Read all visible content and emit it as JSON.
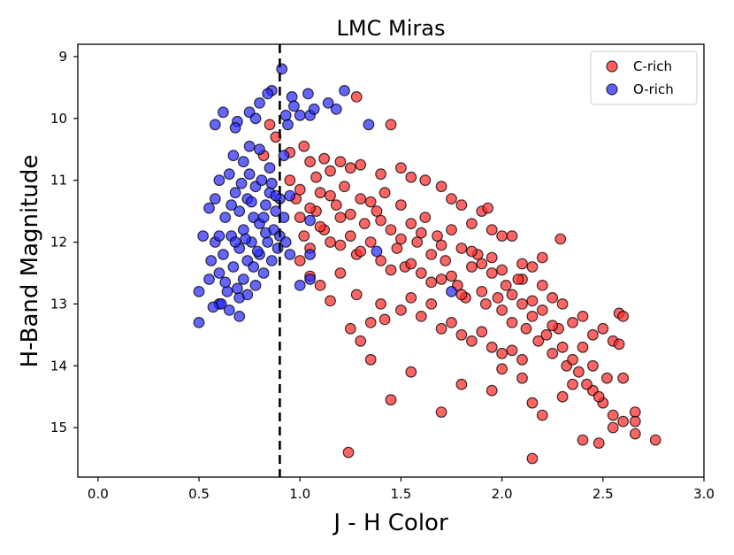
{
  "chart_data": {
    "type": "scatter",
    "title": "LMC Miras",
    "xlabel": "J - H Color",
    "ylabel": "H-Band Magnitude",
    "xlim": [
      -0.1,
      3.0
    ],
    "ylim": [
      15.8,
      8.8
    ],
    "y_inverted": true,
    "xticks": [
      0.0,
      0.5,
      1.0,
      1.5,
      2.0,
      2.5,
      3.0
    ],
    "xtick_labels": [
      "0.0",
      "0.5",
      "1.0",
      "1.5",
      "2.0",
      "2.5",
      "3.0"
    ],
    "yticks": [
      9,
      10,
      11,
      12,
      13,
      14,
      15
    ],
    "ytick_labels": [
      "9",
      "10",
      "11",
      "12",
      "13",
      "14",
      "15"
    ],
    "grid": false,
    "legend_position": "top-right",
    "divider": {
      "x": 0.9,
      "style": "dashed",
      "color": "#000000"
    },
    "series": [
      {
        "name": "C-rich",
        "color": "#ff2a2a",
        "points": [
          [
            0.85,
            10.1
          ],
          [
            0.88,
            10.3
          ],
          [
            0.82,
            10.6
          ],
          [
            0.95,
            10.55
          ],
          [
            1.02,
            10.45
          ],
          [
            1.05,
            10.7
          ],
          [
            1.08,
            10.95
          ],
          [
            1.12,
            10.65
          ],
          [
            1.15,
            10.85
          ],
          [
            1.2,
            10.7
          ],
          [
            1.25,
            10.8
          ],
          [
            1.3,
            10.75
          ],
          [
            1.28,
            9.65
          ],
          [
            1.45,
            10.1
          ],
          [
            1.4,
            10.9
          ],
          [
            1.5,
            10.8
          ],
          [
            1.55,
            10.95
          ],
          [
            1.62,
            11.0
          ],
          [
            1.7,
            11.1
          ],
          [
            1.75,
            11.3
          ],
          [
            1.8,
            11.4
          ],
          [
            1.85,
            11.7
          ],
          [
            1.9,
            11.5
          ],
          [
            1.93,
            11.45
          ],
          [
            1.95,
            11.8
          ],
          [
            2.0,
            11.9
          ],
          [
            2.05,
            11.9
          ],
          [
            2.15,
            12.4
          ],
          [
            2.29,
            11.95
          ],
          [
            2.1,
            12.6
          ],
          [
            2.2,
            12.7
          ],
          [
            2.25,
            12.9
          ],
          [
            2.3,
            13.0
          ],
          [
            2.35,
            13.3
          ],
          [
            2.4,
            13.2
          ],
          [
            2.45,
            13.5
          ],
          [
            2.5,
            13.4
          ],
          [
            2.55,
            13.6
          ],
          [
            2.58,
            13.15
          ],
          [
            2.6,
            13.2
          ],
          [
            2.58,
            13.65
          ],
          [
            2.6,
            14.2
          ],
          [
            2.66,
            14.75
          ],
          [
            2.66,
            14.9
          ],
          [
            2.66,
            15.1
          ],
          [
            2.76,
            15.2
          ],
          [
            2.6,
            14.9
          ],
          [
            2.55,
            15.0
          ],
          [
            2.48,
            15.25
          ],
          [
            2.4,
            15.2
          ],
          [
            2.5,
            14.6
          ],
          [
            2.45,
            14.4
          ],
          [
            2.35,
            14.3
          ],
          [
            2.3,
            14.5
          ],
          [
            2.2,
            14.8
          ],
          [
            2.15,
            14.6
          ],
          [
            2.1,
            14.2
          ],
          [
            2.0,
            14.05
          ],
          [
            1.95,
            14.4
          ],
          [
            1.8,
            14.3
          ],
          [
            1.7,
            14.75
          ],
          [
            1.55,
            14.1
          ],
          [
            1.45,
            14.55
          ],
          [
            1.35,
            13.9
          ],
          [
            1.3,
            13.6
          ],
          [
            1.25,
            13.4
          ],
          [
            1.24,
            15.4
          ],
          [
            2.15,
            15.5
          ],
          [
            1.0,
            12.3
          ],
          [
            1.05,
            12.55
          ],
          [
            1.1,
            12.7
          ],
          [
            1.15,
            12.95
          ],
          [
            1.2,
            12.5
          ],
          [
            1.28,
            12.85
          ],
          [
            1.35,
            13.3
          ],
          [
            1.4,
            13.0
          ],
          [
            1.42,
            13.25
          ],
          [
            1.5,
            13.1
          ],
          [
            1.55,
            12.9
          ],
          [
            1.6,
            13.2
          ],
          [
            1.65,
            13.0
          ],
          [
            1.7,
            13.4
          ],
          [
            1.75,
            13.3
          ],
          [
            1.8,
            13.5
          ],
          [
            1.85,
            13.6
          ],
          [
            1.9,
            13.45
          ],
          [
            1.95,
            13.7
          ],
          [
            2.0,
            13.8
          ],
          [
            2.05,
            13.75
          ],
          [
            2.1,
            13.9
          ],
          [
            0.95,
            11.0
          ],
          [
            0.98,
            11.3
          ],
          [
            1.0,
            11.6
          ],
          [
            1.02,
            11.9
          ],
          [
            1.05,
            12.1
          ],
          [
            1.08,
            11.5
          ],
          [
            1.1,
            11.2
          ],
          [
            1.12,
            11.8
          ],
          [
            1.15,
            12.0
          ],
          [
            1.18,
            11.4
          ],
          [
            1.2,
            11.6
          ],
          [
            1.22,
            11.1
          ],
          [
            1.25,
            11.9
          ],
          [
            1.28,
            12.2
          ],
          [
            1.3,
            11.3
          ],
          [
            1.32,
            11.7
          ],
          [
            1.35,
            12.0
          ],
          [
            1.38,
            11.5
          ],
          [
            1.4,
            12.3
          ],
          [
            1.42,
            11.2
          ],
          [
            1.45,
            11.8
          ],
          [
            1.48,
            12.1
          ],
          [
            1.5,
            11.4
          ],
          [
            1.52,
            12.4
          ],
          [
            1.55,
            11.7
          ],
          [
            1.58,
            12.0
          ],
          [
            1.6,
            12.5
          ],
          [
            1.62,
            11.6
          ],
          [
            1.65,
            12.2
          ],
          [
            1.68,
            11.9
          ],
          [
            1.7,
            12.6
          ],
          [
            1.72,
            12.3
          ],
          [
            1.75,
            11.8
          ],
          [
            1.78,
            12.7
          ],
          [
            1.8,
            12.1
          ],
          [
            1.82,
            12.9
          ],
          [
            1.85,
            12.4
          ],
          [
            1.88,
            12.2
          ],
          [
            1.9,
            12.8
          ],
          [
            1.92,
            13.0
          ],
          [
            1.95,
            12.5
          ],
          [
            1.98,
            12.9
          ],
          [
            2.0,
            13.1
          ],
          [
            2.02,
            12.7
          ],
          [
            2.05,
            13.3
          ],
          [
            2.08,
            12.6
          ],
          [
            2.1,
            13.0
          ],
          [
            2.12,
            13.4
          ],
          [
            2.15,
            13.2
          ],
          [
            2.18,
            13.6
          ],
          [
            2.2,
            13.1
          ],
          [
            2.22,
            13.5
          ],
          [
            2.25,
            13.8
          ],
          [
            2.28,
            13.4
          ],
          [
            2.3,
            13.7
          ],
          [
            2.32,
            14.0
          ],
          [
            2.35,
            13.9
          ],
          [
            2.38,
            14.1
          ],
          [
            2.4,
            13.7
          ],
          [
            2.42,
            14.3
          ],
          [
            2.45,
            14.0
          ],
          [
            2.48,
            14.5
          ],
          [
            2.52,
            14.2
          ],
          [
            2.55,
            14.8
          ],
          [
            1.0,
            11.15
          ],
          [
            1.05,
            11.45
          ],
          [
            1.1,
            11.75
          ],
          [
            1.15,
            11.25
          ],
          [
            1.2,
            12.05
          ],
          [
            1.25,
            11.55
          ],
          [
            1.3,
            12.15
          ],
          [
            1.35,
            11.35
          ],
          [
            1.4,
            11.65
          ],
          [
            1.45,
            12.45
          ],
          [
            1.5,
            11.95
          ],
          [
            1.55,
            12.35
          ],
          [
            1.6,
            11.85
          ],
          [
            1.65,
            12.65
          ],
          [
            1.7,
            12.05
          ],
          [
            1.75,
            12.55
          ],
          [
            1.8,
            12.85
          ],
          [
            1.85,
            12.15
          ],
          [
            1.9,
            12.35
          ],
          [
            1.95,
            12.25
          ],
          [
            2.0,
            12.45
          ],
          [
            2.05,
            12.85
          ],
          [
            2.1,
            12.35
          ],
          [
            2.15,
            12.95
          ],
          [
            2.2,
            12.25
          ],
          [
            2.25,
            13.35
          ]
        ]
      },
      {
        "name": "O-rich",
        "color": "#2a2aff",
        "points": [
          [
            0.5,
            13.3
          ],
          [
            0.5,
            12.8
          ],
          [
            0.55,
            12.6
          ],
          [
            0.56,
            12.3
          ],
          [
            0.58,
            12.0
          ],
          [
            0.6,
            11.9
          ],
          [
            0.6,
            12.5
          ],
          [
            0.6,
            13.0
          ],
          [
            0.62,
            12.2
          ],
          [
            0.63,
            11.6
          ],
          [
            0.64,
            12.8
          ],
          [
            0.65,
            13.1
          ],
          [
            0.66,
            11.9
          ],
          [
            0.67,
            12.4
          ],
          [
            0.68,
            11.2
          ],
          [
            0.7,
            12.1
          ],
          [
            0.7,
            11.5
          ],
          [
            0.7,
            12.9
          ],
          [
            0.72,
            11.8
          ],
          [
            0.72,
            12.6
          ],
          [
            0.74,
            11.3
          ],
          [
            0.74,
            12.3
          ],
          [
            0.75,
            10.9
          ],
          [
            0.76,
            12.0
          ],
          [
            0.77,
            11.6
          ],
          [
            0.78,
            12.7
          ],
          [
            0.78,
            11.1
          ],
          [
            0.8,
            12.2
          ],
          [
            0.8,
            11.7
          ],
          [
            0.81,
            11.0
          ],
          [
            0.82,
            12.5
          ],
          [
            0.83,
            11.4
          ],
          [
            0.84,
            12.0
          ],
          [
            0.85,
            11.2
          ],
          [
            0.86,
            12.3
          ],
          [
            0.87,
            11.8
          ],
          [
            0.88,
            11.5
          ],
          [
            0.89,
            12.1
          ],
          [
            0.9,
            11.3
          ],
          [
            0.9,
            11.9
          ],
          [
            0.91,
            9.2
          ],
          [
            0.86,
            9.55
          ],
          [
            0.84,
            9.6
          ],
          [
            0.8,
            9.75
          ],
          [
            0.75,
            9.9
          ],
          [
            0.78,
            10.0
          ],
          [
            0.69,
            10.05
          ],
          [
            0.68,
            10.15
          ],
          [
            0.62,
            9.9
          ],
          [
            0.58,
            10.1
          ],
          [
            0.75,
            10.45
          ],
          [
            0.8,
            10.5
          ],
          [
            0.85,
            10.8
          ],
          [
            0.72,
            10.7
          ],
          [
            0.67,
            10.6
          ],
          [
            0.65,
            10.9
          ],
          [
            0.6,
            11.0
          ],
          [
            0.58,
            11.3
          ],
          [
            0.55,
            11.45
          ],
          [
            0.52,
            11.9
          ],
          [
            0.96,
            9.65
          ],
          [
            1.0,
            9.95
          ],
          [
            1.05,
            9.95
          ],
          [
            1.04,
            9.6
          ],
          [
            1.07,
            9.85
          ],
          [
            1.14,
            9.75
          ],
          [
            1.18,
            9.85
          ],
          [
            1.22,
            9.55
          ],
          [
            1.34,
            10.1
          ],
          [
            1.05,
            11.65
          ],
          [
            1.05,
            12.6
          ],
          [
            1.0,
            12.7
          ],
          [
            0.95,
            12.2
          ],
          [
            0.95,
            11.25
          ],
          [
            1.38,
            12.15
          ],
          [
            1.75,
            12.8
          ],
          [
            1.05,
            12.2
          ],
          [
            0.92,
            11.6
          ],
          [
            0.93,
            12.0
          ],
          [
            0.68,
            12.0
          ],
          [
            0.66,
            11.4
          ],
          [
            0.71,
            11.05
          ],
          [
            0.73,
            11.95
          ],
          [
            0.76,
            11.35
          ],
          [
            0.79,
            12.15
          ],
          [
            0.83,
            11.85
          ],
          [
            0.63,
            12.65
          ],
          [
            0.69,
            12.75
          ],
          [
            0.61,
            13.0
          ],
          [
            0.57,
            13.05
          ],
          [
            0.86,
            11.05
          ],
          [
            0.88,
            11.25
          ],
          [
            0.82,
            11.6
          ],
          [
            0.77,
            12.4
          ],
          [
            0.74,
            12.85
          ],
          [
            0.7,
            13.2
          ],
          [
            0.92,
            10.6
          ],
          [
            0.94,
            10.1
          ],
          [
            0.93,
            9.95
          ],
          [
            0.97,
            9.8
          ]
        ]
      }
    ]
  }
}
